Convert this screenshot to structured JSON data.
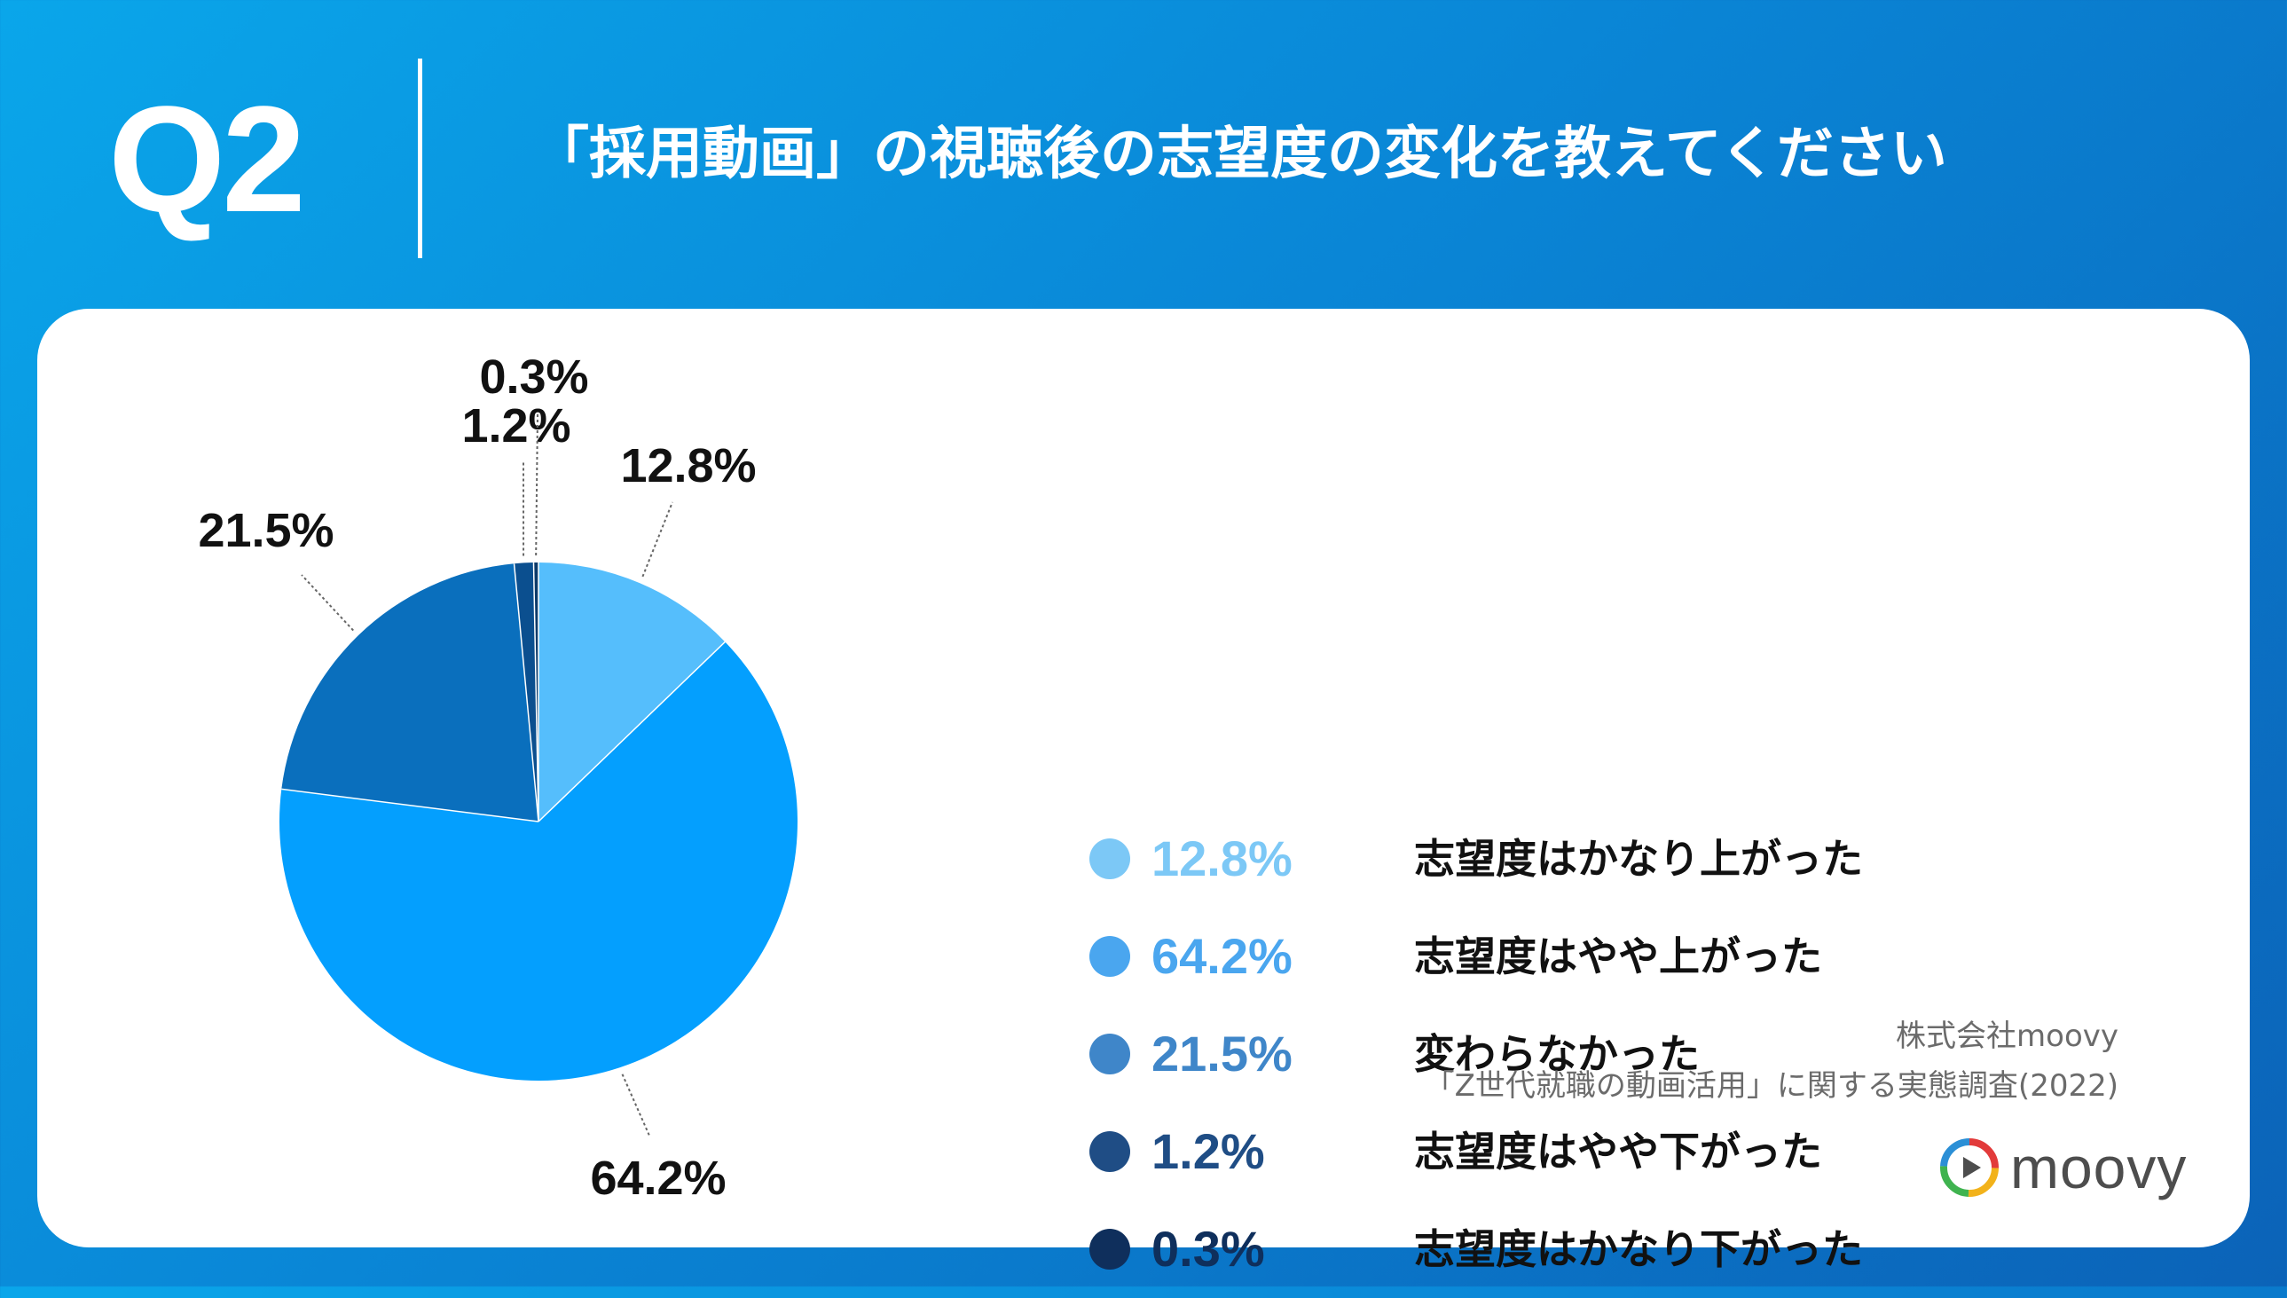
{
  "header": {
    "q_label": "Q2",
    "question": "「採用動画」の視聴後の志望度の変化を教えてください"
  },
  "chart_data": {
    "type": "pie",
    "categories": [
      "志望度はかなり上がった",
      "志望度はやや上がった",
      "変わらなかった",
      "志望度はやや下がった",
      "志望度はかなり下がった"
    ],
    "values": [
      12.8,
      64.2,
      21.5,
      1.2,
      0.3
    ],
    "value_labels": [
      "12.8%",
      "64.2%",
      "21.5%",
      "1.2%",
      "0.3%"
    ],
    "colors": [
      "#55befc",
      "#049ffe",
      "#0a6fbd",
      "#0b4f8f",
      "#0c3a6a"
    ],
    "legend_colors": [
      "#7cc8f6",
      "#4aa6ef",
      "#3f86c9",
      "#1f4d85",
      "#0f2f5c"
    ],
    "legend_placement": "right"
  },
  "source": {
    "line1": "株式会社moovy",
    "line2": "「Z世代就職の動画活用」に関する実態調査(2022)"
  },
  "logo": {
    "text": "moovy",
    "icon": "play-icon"
  }
}
